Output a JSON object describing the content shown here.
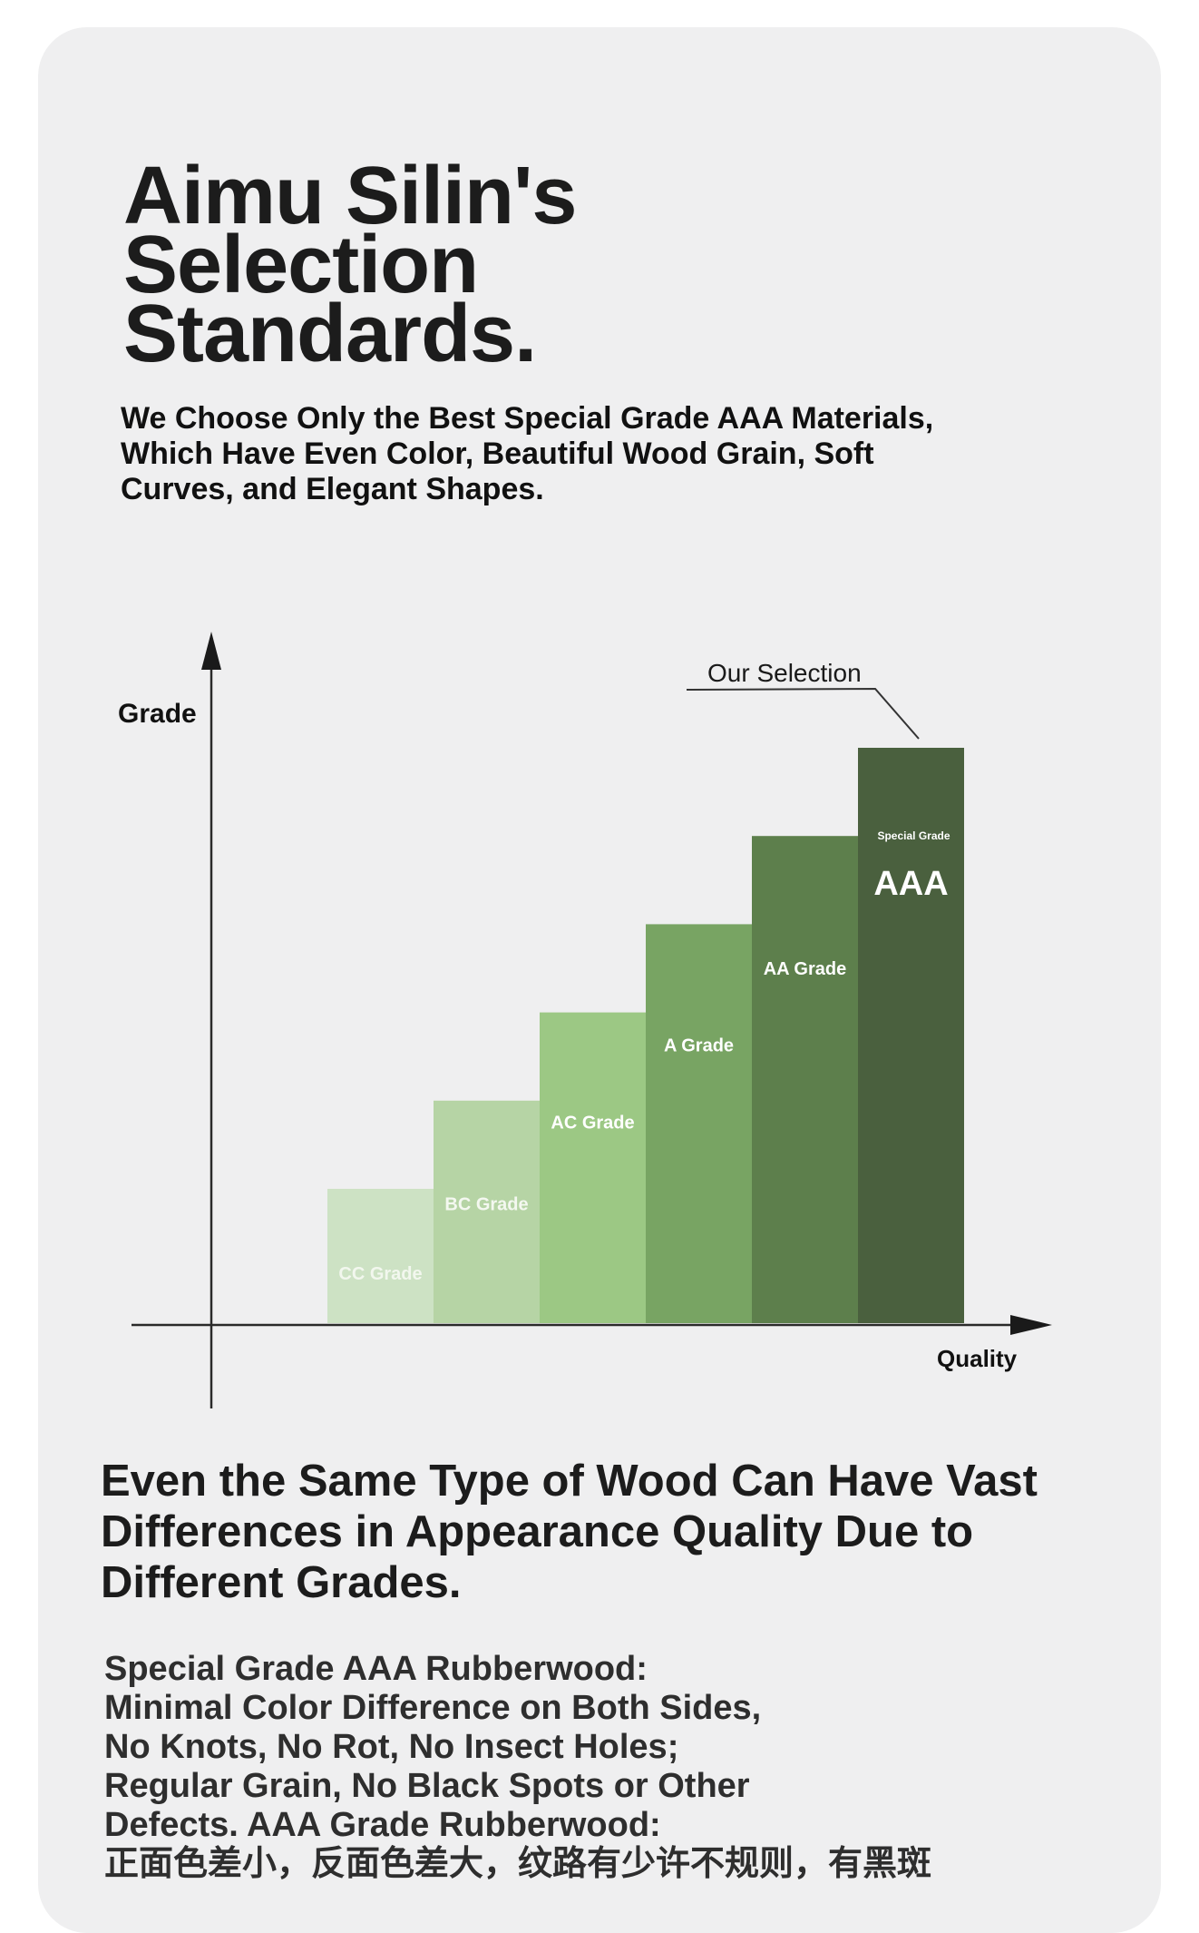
{
  "title_lines": [
    "Aimu Silin's",
    "Selection",
    "Standards."
  ],
  "subtitle": "We Choose Only the Best Special Grade AAA Materials, Which Have Even Color, Beautiful Wood Grain, Soft Curves, and Elegant Shapes.",
  "chart_data": {
    "type": "bar",
    "ylabel": "Grade",
    "xlabel": "Quality",
    "grid": false,
    "legend": "none",
    "categories": [
      "CC Grade",
      "BC Grade",
      "AC Grade",
      "A Grade",
      "AA Grade",
      "Special Grade AAA"
    ],
    "bar_labels": [
      "CC Grade",
      "BC Grade",
      "AC Grade",
      "A Grade",
      "AA Grade",
      "AAA"
    ],
    "top_caption": "Special Grade",
    "values": [
      1,
      2,
      3,
      4,
      5,
      6
    ],
    "annotation": "Our Selection",
    "colors": [
      "#cde2c4",
      "#b6d4a5",
      "#9cc884",
      "#78a463",
      "#5d7f4c",
      "#4a603e"
    ],
    "label_colors": [
      "#f2f7ee",
      "#f4f8f0",
      "#ffffff",
      "#ffffff",
      "#ffffff",
      "#ffffff"
    ]
  },
  "headline": "Even the Same Type of Wood Can Have Vast Differences in Appearance Quality Due to Different Grades.",
  "body_lines": [
    "Special Grade AAA Rubberwood:",
    "Minimal Color Difference on Both Sides,",
    "No Knots, No Rot, No Insect Holes;",
    "Regular Grain, No Black Spots or Other",
    "Defects. AAA Grade Rubberwood:",
    "正面色差小，反面色差大，纹路有少许不规则，有黑斑"
  ]
}
